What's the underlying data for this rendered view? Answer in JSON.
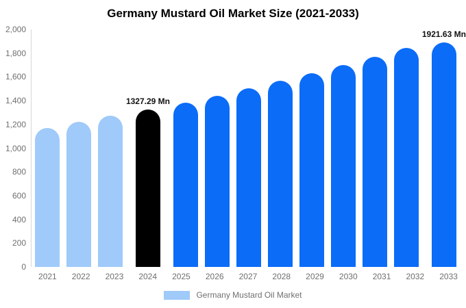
{
  "header": {
    "title": "Germany Mustard Oil Market Size (2021-2033)"
  },
  "legend": {
    "label": "Germany Mustard Oil Market"
  },
  "colors": {
    "historical_bar": "#9FCAF9",
    "highlight_bar": "#000000",
    "forecast_bar": "#0B6CF8",
    "axis_text": "#6F6F6F",
    "axis_line": "#D6D6D6",
    "annotation_text": "#111111",
    "title_text": "#000000",
    "background": "#FFFFFF"
  },
  "chart_data": {
    "type": "bar",
    "title": "Germany Mustard Oil Market Size (2021-2033)",
    "xlabel": "",
    "ylabel": "",
    "unit": "Mn",
    "ylim": [
      0,
      2000
    ],
    "ytick_step": 200,
    "yticks": [
      "0",
      "200",
      "400",
      "600",
      "800",
      "1,000",
      "1,200",
      "1,400",
      "1,600",
      "1,800",
      "2,000"
    ],
    "grid": false,
    "legend_position": "bottom",
    "categories": [
      "2021",
      "2022",
      "2023",
      "2024",
      "2025",
      "2026",
      "2027",
      "2028",
      "2029",
      "2030",
      "2031",
      "2032",
      "2033"
    ],
    "values": [
      1173,
      1222,
      1274,
      1327.29,
      1383,
      1441,
      1502,
      1565,
      1630,
      1699,
      1770,
      1845,
      1921.63
    ],
    "bar_roles": [
      "historical",
      "historical",
      "historical",
      "highlight",
      "forecast",
      "forecast",
      "forecast",
      "forecast",
      "forecast",
      "forecast",
      "forecast",
      "forecast",
      "forecast"
    ],
    "annotations": [
      {
        "category": "2024",
        "text": "1327.29 Mn"
      },
      {
        "category": "2033",
        "text": "1921.63 Mn"
      }
    ],
    "series": [
      {
        "name": "Germany Mustard Oil Market"
      }
    ]
  }
}
